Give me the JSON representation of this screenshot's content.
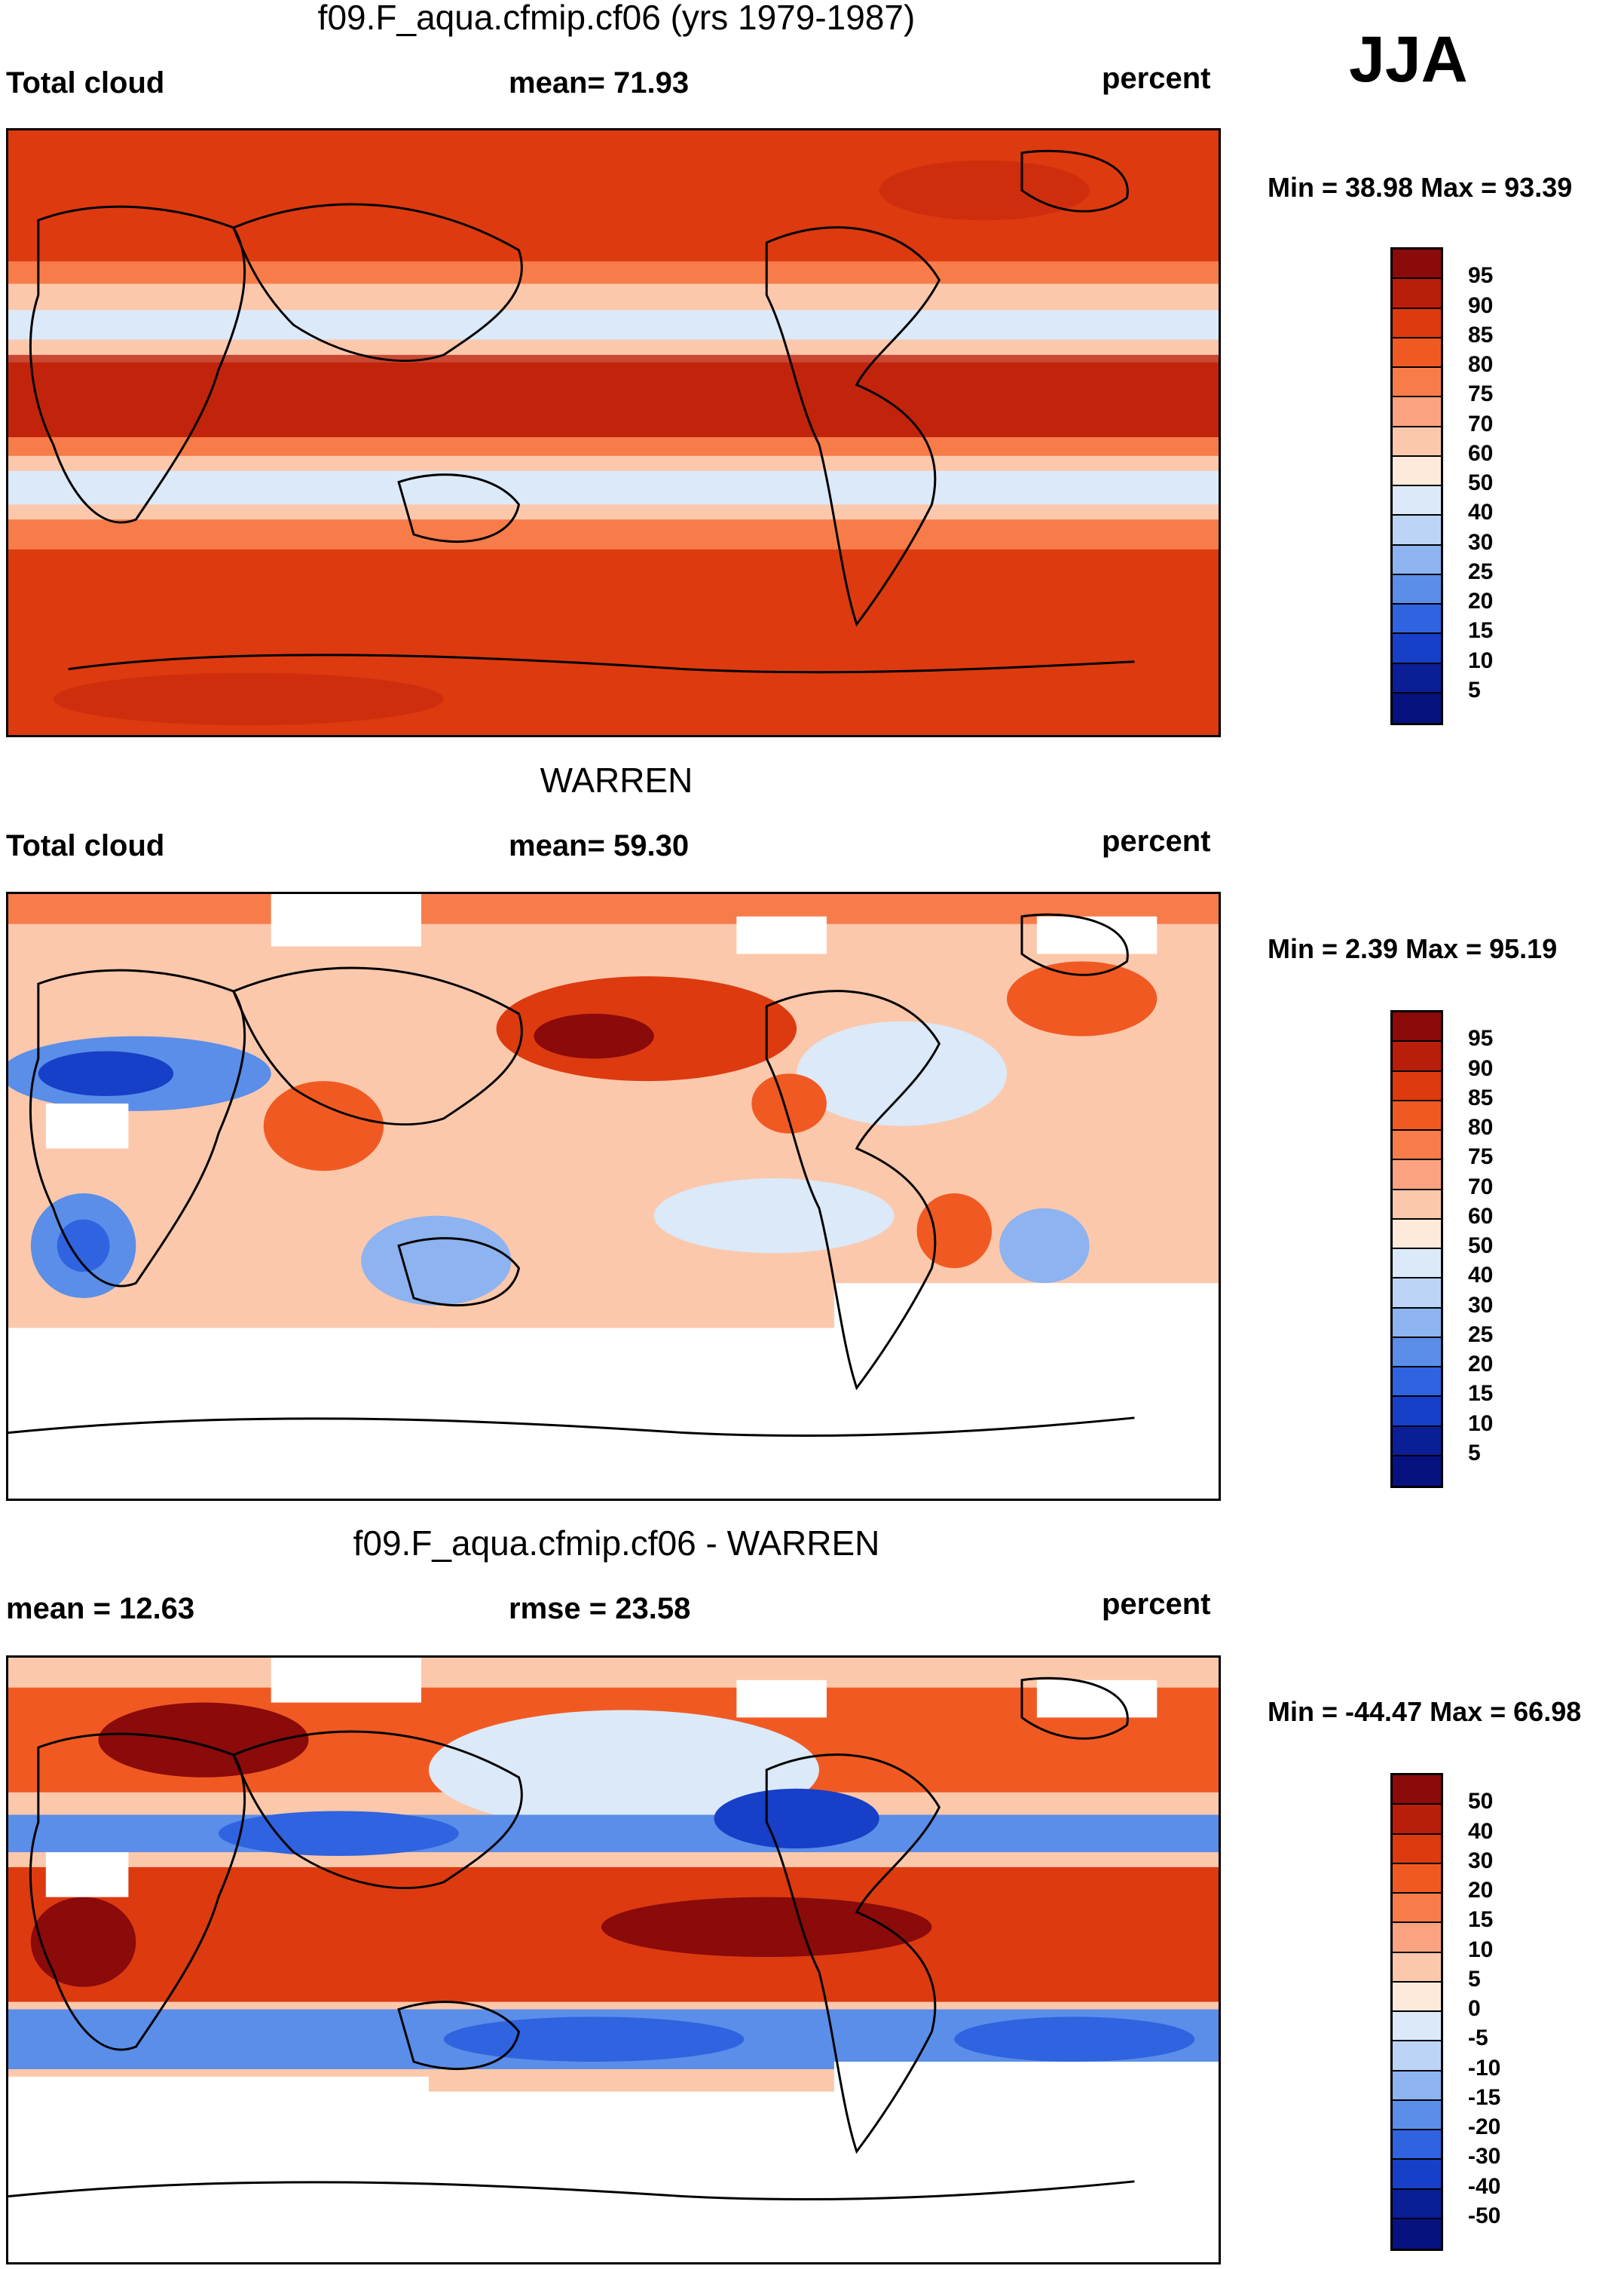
{
  "season": "JJA",
  "panels": [
    {
      "title": "f09.F_aqua.cfmip.cf06 (yrs 1979-1987)",
      "left_label": "Total cloud",
      "center_label": "mean=  71.93",
      "right_label": "percent",
      "minmax": "Min =  38.98 Max =  93.39",
      "colorbar": {
        "labels": [
          "95",
          "90",
          "85",
          "80",
          "75",
          "70",
          "60",
          "50",
          "40",
          "30",
          "25",
          "20",
          "15",
          "10",
          "5"
        ],
        "colors": [
          "#8b0a0a",
          "#b81e0a",
          "#dd3a10",
          "#f05a22",
          "#f77c4a",
          "#fba380",
          "#fcc8ac",
          "#fdeadb",
          "#dbe9f8",
          "#bcd4f5",
          "#8db3f0",
          "#5a8ee8",
          "#2f63e0",
          "#173fc8",
          "#0a1e96",
          "#061280"
        ]
      }
    },
    {
      "title": "WARREN",
      "left_label": "Total cloud",
      "center_label": "mean=  59.30",
      "right_label": "percent",
      "minmax": "Min =   2.39 Max =  95.19",
      "colorbar": {
        "labels": [
          "95",
          "90",
          "85",
          "80",
          "75",
          "70",
          "60",
          "50",
          "40",
          "30",
          "25",
          "20",
          "15",
          "10",
          "5"
        ],
        "colors": [
          "#8b0a0a",
          "#b81e0a",
          "#dd3a10",
          "#f05a22",
          "#f77c4a",
          "#fba380",
          "#fcc8ac",
          "#fdeadb",
          "#dbe9f8",
          "#bcd4f5",
          "#8db3f0",
          "#5a8ee8",
          "#2f63e0",
          "#173fc8",
          "#0a1e96",
          "#061280"
        ]
      }
    },
    {
      "title": "f09.F_aqua.cfmip.cf06 - WARREN",
      "left_label": "mean =  12.63",
      "center_label": "rmse =  23.58",
      "right_label": "percent",
      "minmax": "Min = -44.47 Max =  66.98",
      "colorbar": {
        "labels": [
          "50",
          "40",
          "30",
          "20",
          "15",
          "10",
          "5",
          "0",
          "-5",
          "-10",
          "-15",
          "-20",
          "-30",
          "-40",
          "-50"
        ],
        "colors": [
          "#8b0a0a",
          "#b81e0a",
          "#dd3a10",
          "#f05a22",
          "#f77c4a",
          "#fba380",
          "#fcc8ac",
          "#fdeadb",
          "#dbe9f8",
          "#bcd4f5",
          "#8db3f0",
          "#5a8ee8",
          "#2f63e0",
          "#173fc8",
          "#0a1e96",
          "#061280"
        ]
      }
    }
  ]
}
